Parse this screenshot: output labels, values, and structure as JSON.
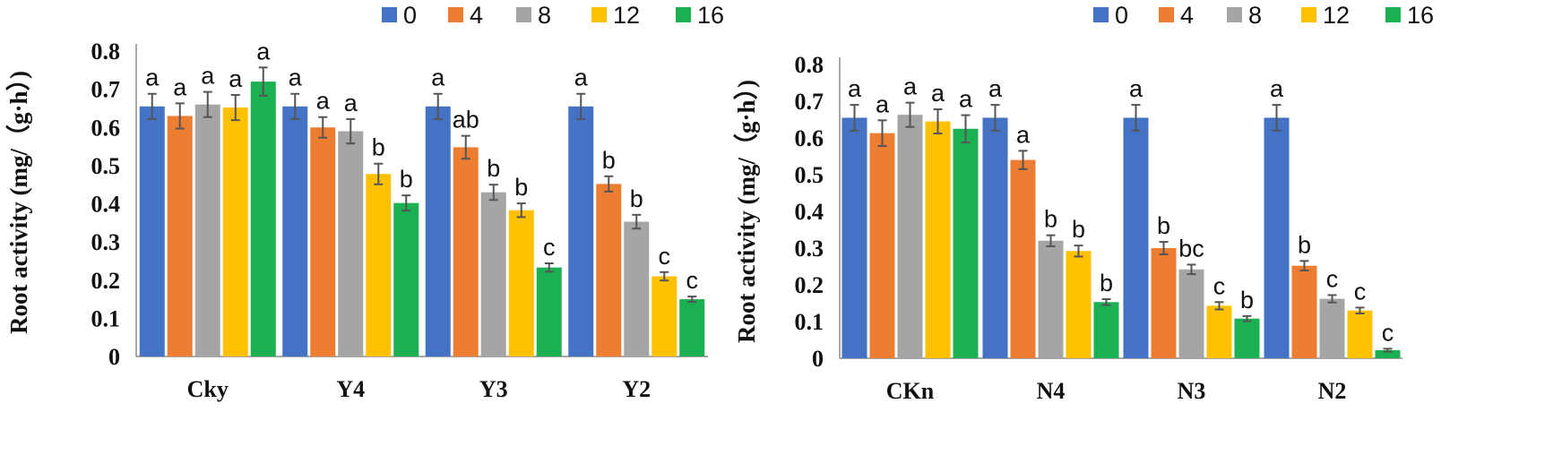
{
  "chart_data": [
    {
      "type": "bar",
      "ylabel": "Root activity (mg/（g·h）)",
      "ylim": [
        0,
        0.8
      ],
      "yticks": [
        "0",
        "0.1",
        "0.2",
        "0.3",
        "0.4",
        "0.5",
        "0.6",
        "0.7",
        "0.8"
      ],
      "categories": [
        "Cky",
        "Y4",
        "Y3",
        "Y2"
      ],
      "legend_position": "top-right",
      "series": [
        {
          "name": "0",
          "color": "#4472C4",
          "values": [
            0.655,
            0.655,
            0.655,
            0.655
          ],
          "errors": [
            0.033,
            0.033,
            0.033,
            0.033
          ],
          "labels": [
            "a",
            "a",
            "a",
            "a"
          ]
        },
        {
          "name": "4",
          "color": "#ED7D31",
          "values": [
            0.63,
            0.6,
            0.548,
            0.452
          ],
          "errors": [
            0.033,
            0.027,
            0.03,
            0.02
          ],
          "labels": [
            "a",
            "a",
            "ab",
            "b"
          ]
        },
        {
          "name": "8",
          "color": "#A5A5A5",
          "values": [
            0.66,
            0.59,
            0.43,
            0.353
          ],
          "errors": [
            0.033,
            0.032,
            0.02,
            0.018
          ],
          "labels": [
            "a",
            "a",
            "b",
            "b"
          ]
        },
        {
          "name": "12",
          "color": "#FFC000",
          "values": [
            0.652,
            0.478,
            0.383,
            0.21
          ],
          "errors": [
            0.033,
            0.027,
            0.018,
            0.011
          ],
          "labels": [
            "a",
            "b",
            "b",
            "c"
          ]
        },
        {
          "name": "16",
          "color": "#1BB152",
          "values": [
            0.72,
            0.402,
            0.233,
            0.15
          ],
          "errors": [
            0.037,
            0.02,
            0.011,
            0.007
          ],
          "labels": [
            "a",
            "b",
            "c",
            "c"
          ]
        }
      ]
    },
    {
      "type": "bar",
      "ylabel": "Root activity (mg/（g·h）)",
      "ylim": [
        0,
        0.8
      ],
      "yticks": [
        "0",
        "0.1",
        "0.2",
        "0.3",
        "0.4",
        "0.5",
        "0.6",
        "0.7",
        "0.8"
      ],
      "categories": [
        "CKn",
        "N4",
        "N3",
        "N2"
      ],
      "legend_position": "top-right",
      "series": [
        {
          "name": "0",
          "color": "#4472C4",
          "values": [
            0.655,
            0.655,
            0.655,
            0.655
          ],
          "errors": [
            0.035,
            0.035,
            0.035,
            0.035
          ],
          "labels": [
            "a",
            "a",
            "a",
            "a"
          ]
        },
        {
          "name": "4",
          "color": "#ED7D31",
          "values": [
            0.613,
            0.54,
            0.3,
            0.252
          ],
          "errors": [
            0.035,
            0.025,
            0.017,
            0.013
          ],
          "labels": [
            "a",
            "a",
            "b",
            "b"
          ]
        },
        {
          "name": "8",
          "color": "#A5A5A5",
          "values": [
            0.663,
            0.32,
            0.242,
            0.162
          ],
          "errors": [
            0.033,
            0.015,
            0.013,
            0.01
          ],
          "labels": [
            "a",
            "b",
            "bc",
            "c"
          ]
        },
        {
          "name": "12",
          "color": "#FFC000",
          "values": [
            0.645,
            0.292,
            0.143,
            0.13
          ],
          "errors": [
            0.033,
            0.015,
            0.01,
            0.008
          ],
          "labels": [
            "a",
            "b",
            "c",
            "c"
          ]
        },
        {
          "name": "16",
          "color": "#1BB152",
          "values": [
            0.625,
            0.153,
            0.108,
            0.022
          ],
          "errors": [
            0.037,
            0.008,
            0.007,
            0.004
          ],
          "labels": [
            "a",
            "b",
            "b",
            "c"
          ]
        }
      ]
    }
  ]
}
